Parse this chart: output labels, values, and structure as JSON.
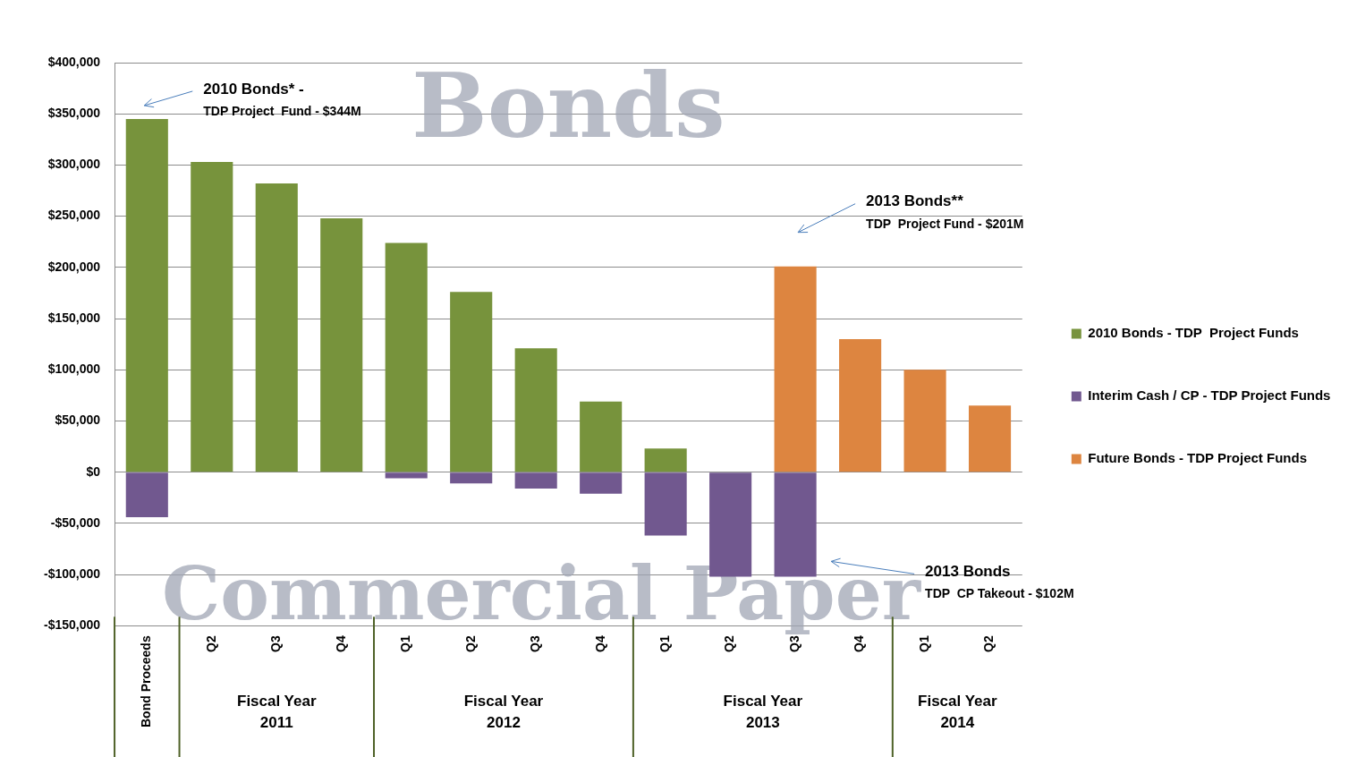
{
  "chart_data": {
    "type": "bar",
    "stacked": true,
    "categories": [
      "Bond Proceeds",
      "Q2",
      "Q3",
      "Q4",
      "Q1",
      "Q2",
      "Q3",
      "Q4",
      "Q1",
      "Q2",
      "Q3",
      "Q4",
      "Q1",
      "Q2"
    ],
    "series": [
      {
        "name": "2010 Bonds - TDP  Project Funds",
        "color": "#77933c",
        "values": [
          345000,
          303000,
          282000,
          248000,
          224000,
          176000,
          121000,
          69000,
          23000,
          null,
          null,
          null,
          null,
          null
        ]
      },
      {
        "name": "Interim Cash / CP - TDP Project Funds",
        "color": "#71588f",
        "values": [
          -44000,
          null,
          null,
          null,
          -6000,
          -11000,
          -16000,
          -21000,
          -62000,
          -102000,
          -102000,
          null,
          null,
          null
        ]
      },
      {
        "name": "Future Bonds - TDP Project Funds",
        "color": "#dd8540",
        "values": [
          null,
          null,
          null,
          null,
          null,
          null,
          null,
          null,
          null,
          null,
          201000,
          130000,
          100000,
          65000
        ]
      }
    ],
    "ylim": [
      -150000,
      400000
    ],
    "yticks": [
      {
        "value": -150000,
        "label": "-$150,000"
      },
      {
        "value": -100000,
        "label": "-$100,000"
      },
      {
        "value": -50000,
        "label": "-$50,000"
      },
      {
        "value": 0,
        "label": "$0"
      },
      {
        "value": 50000,
        "label": "$50,000"
      },
      {
        "value": 100000,
        "label": "$100,000"
      },
      {
        "value": 150000,
        "label": "$150,000"
      },
      {
        "value": 200000,
        "label": "$200,000"
      },
      {
        "value": 250000,
        "label": "$250,000"
      },
      {
        "value": 300000,
        "label": "$300,000"
      },
      {
        "value": 350000,
        "label": "$350,000"
      },
      {
        "value": 400000,
        "label": "$400,000"
      }
    ],
    "grid": "y",
    "legend": "right",
    "annotations": [
      "2010 Bonds* -\nTDP Project  Fund - $344M",
      "2013 Bonds**\nTDP  Project Fund - $201M",
      "2013 Bonds\nTDP  CP Takeout - $102M",
      "Bonds",
      "Commercial Paper",
      "Fiscal Year 2011",
      "Fiscal Year 2012",
      "Fiscal Year 2013",
      "Fiscal Year 2014"
    ]
  }
}
